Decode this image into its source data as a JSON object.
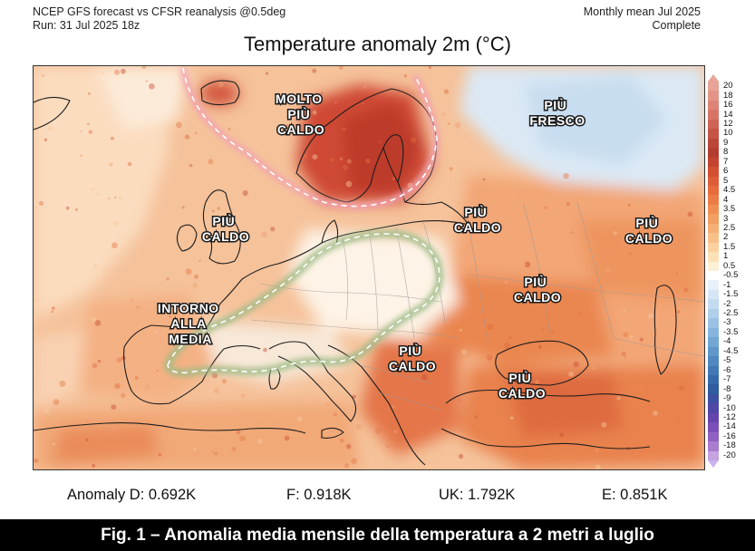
{
  "header": {
    "left_line1": "NCEP GFS forecast vs CFSR reanalysis @0.5deg",
    "left_line2": "Run: 31 Jul 2025 18z",
    "right_line1": "Monthly mean Jul 2025",
    "right_line2": "Complete"
  },
  "map": {
    "title": "Temperature anomaly 2m (°C)",
    "labels": [
      {
        "id": "molto-piu-caldo",
        "lines": [
          "MOLTO",
          "PIÙ",
          "CALDO"
        ]
      },
      {
        "id": "piu-fresco",
        "lines": [
          "PIÙ",
          "FRESCO"
        ]
      },
      {
        "id": "piu-caldo-uk",
        "lines": [
          "PIÙ",
          "CALDO"
        ]
      },
      {
        "id": "piu-caldo-poland",
        "lines": [
          "PIÙ",
          "CALDO"
        ]
      },
      {
        "id": "piu-caldo-russia",
        "lines": [
          "PIÙ",
          "CALDO"
        ]
      },
      {
        "id": "piu-caldo-ukraine",
        "lines": [
          "PIÙ",
          "CALDO"
        ]
      },
      {
        "id": "intorno-alla-media",
        "lines": [
          "INTORNO",
          "ALLA",
          "MEDIA"
        ]
      },
      {
        "id": "piu-caldo-balkans",
        "lines": [
          "PIÙ",
          "CALDO"
        ]
      },
      {
        "id": "piu-caldo-turkey",
        "lines": [
          "PIÙ",
          "CALDO"
        ]
      }
    ],
    "highlight_colors": {
      "hot_outline": "#f7a6b6",
      "neutral_outline": "#a7bf90"
    }
  },
  "colorbar": {
    "ticks": [
      "20",
      "18",
      "16",
      "14",
      "12",
      "10",
      "9",
      "8",
      "7",
      "6",
      "5",
      "4.5",
      "4",
      "3.5",
      "3",
      "2.5",
      "2",
      "1.5",
      "1",
      "0.5",
      "-0.5",
      "-1",
      "-1.5",
      "-2",
      "-2.5",
      "-3",
      "-3.5",
      "-4",
      "-4.5",
      "-5",
      "-6",
      "-7",
      "-8",
      "-9",
      "-10",
      "-12",
      "-14",
      "-16",
      "-18",
      "-20"
    ],
    "colors": [
      "#e8a496",
      "#e49486",
      "#de8476",
      "#d77466",
      "#cf6456",
      "#c55446",
      "#bb4739",
      "#b33d30",
      "#c4432f",
      "#d34f32",
      "#de5d38",
      "#e66c3e",
      "#ec7c46",
      "#f08d52",
      "#f39e62",
      "#f6af75",
      "#f8c089",
      "#fad19f",
      "#fbe1b8",
      "#fdf0d8",
      "#ffffff",
      "#e8f1fb",
      "#d6e6f6",
      "#c3dbf1",
      "#afcfeb",
      "#9bc2e4",
      "#86b4dc",
      "#72a6d3",
      "#6097ca",
      "#5088c0",
      "#4178b5",
      "#3769aa",
      "#2f5b9f",
      "#3d4fa0",
      "#5047a6",
      "#6545ad",
      "#7b4fb7",
      "#9161c2",
      "#a87cce",
      "#c4a3e0"
    ]
  },
  "anomalies": {
    "d": "Anomaly D: 0.692K",
    "f": "F: 0.918K",
    "uk": "UK: 1.792K",
    "e": "E: 0.851K"
  },
  "caption": "Fig. 1 – Anomalia media mensile della temperatura a 2 metri a luglio"
}
